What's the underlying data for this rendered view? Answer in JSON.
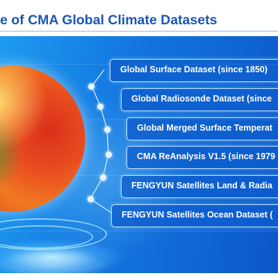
{
  "header": {
    "title": "e of CMA Global Climate Datasets"
  },
  "colors": {
    "title": "#1d56b3",
    "panel_blue": "#1478e0",
    "label_border": "#bfe4ff"
  },
  "datasets": [
    {
      "label": "Global Surface Dataset (since 1850)"
    },
    {
      "label": "Global Radiosonde Dataset (since"
    },
    {
      "label": "Global Merged Surface Temperat"
    },
    {
      "label": "CMA ReAnalysis V1.5 (since 1979"
    },
    {
      "label": "FENGYUN Satellites Land & Radia"
    },
    {
      "label": "FENGYUN Satellites Ocean Dataset ("
    }
  ]
}
